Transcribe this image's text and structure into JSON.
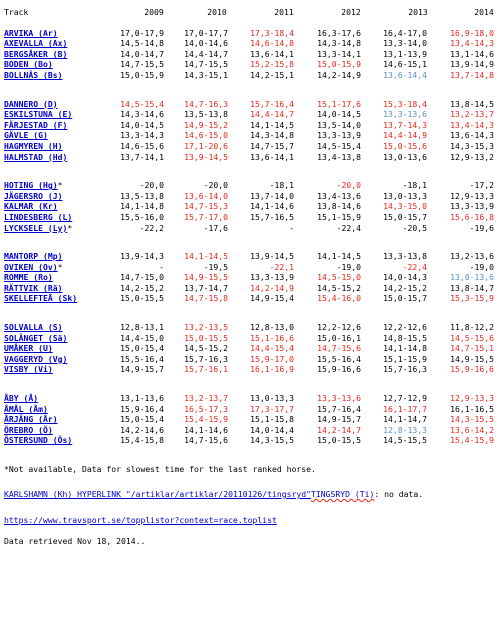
{
  "header": {
    "track_label": "Track",
    "years": [
      "2009",
      "2010",
      "2011",
      "2012",
      "2013",
      "2014"
    ]
  },
  "groups": [
    {
      "rows": [
        {
          "track": "ARVIKA (Ar)",
          "mark": "",
          "values": [
            {
              "t": "17,0-17,9",
              "c": "n"
            },
            {
              "t": "17,0-17,7",
              "c": "n"
            },
            {
              "t": "17,3-18,4",
              "c": "r"
            },
            {
              "t": "16,3-17,6",
              "c": "n"
            },
            {
              "t": "16,4-17,0",
              "c": "n"
            },
            {
              "t": "16,9-18,0",
              "c": "r"
            }
          ]
        },
        {
          "track": "AXEVALLA (Ax)",
          "mark": "",
          "values": [
            {
              "t": "14,5-14,8",
              "c": "n"
            },
            {
              "t": "14,0-14,6",
              "c": "n"
            },
            {
              "t": "14,6-14,8",
              "c": "r"
            },
            {
              "t": "14,3-14,8",
              "c": "n"
            },
            {
              "t": "13,3-14,0",
              "c": "n"
            },
            {
              "t": "13,4-14,3",
              "c": "r"
            }
          ]
        },
        {
          "track": "BERGSÅKER (B)",
          "mark": "",
          "values": [
            {
              "t": "14,0-14,7",
              "c": "n"
            },
            {
              "t": "14,4-14,7",
              "c": "n"
            },
            {
              "t": "13,6-14,1",
              "c": "n"
            },
            {
              "t": "13,3-14,1",
              "c": "n"
            },
            {
              "t": "13,1-13,9",
              "c": "n"
            },
            {
              "t": "13,1-14,6",
              "c": "n"
            }
          ]
        },
        {
          "track": "BODEN (Bo)",
          "mark": "",
          "values": [
            {
              "t": "14,7-15,5",
              "c": "n"
            },
            {
              "t": "14,7-15,5",
              "c": "n"
            },
            {
              "t": "15,2-15,8",
              "c": "r"
            },
            {
              "t": "15,0-15,9",
              "c": "r"
            },
            {
              "t": "14,6-15,1",
              "c": "n"
            },
            {
              "t": "13,9-14,9",
              "c": "n"
            }
          ]
        },
        {
          "track": "BOLLNÄS (Bs)",
          "mark": "",
          "values": [
            {
              "t": "15,0-15,9",
              "c": "n"
            },
            {
              "t": "14,3-15,1",
              "c": "n"
            },
            {
              "t": "14,2-15,1",
              "c": "n"
            },
            {
              "t": "14,2-14,9",
              "c": "n"
            },
            {
              "t": "13,6-14,4",
              "c": "b"
            },
            {
              "t": "13,7-14,8",
              "c": "r"
            }
          ]
        }
      ]
    },
    {
      "rows": [
        {
          "track": "DANNERO (D)",
          "mark": "",
          "values": [
            {
              "t": "14,5-15,4",
              "c": "r"
            },
            {
              "t": "14,7-16,3",
              "c": "r"
            },
            {
              "t": "15,7-16,4",
              "c": "r"
            },
            {
              "t": "15,1-17,6",
              "c": "r"
            },
            {
              "t": "15,3-18,4",
              "c": "r"
            },
            {
              "t": "13,8-14,5",
              "c": "n"
            }
          ]
        },
        {
          "track": "ESKILSTUNA (E)",
          "mark": "",
          "values": [
            {
              "t": "14,3-14,6",
              "c": "n"
            },
            {
              "t": "13,5-13,8",
              "c": "n"
            },
            {
              "t": "14,4-14,7",
              "c": "r"
            },
            {
              "t": "14,0-14,5",
              "c": "n"
            },
            {
              "t": "13,3-13,6",
              "c": "b"
            },
            {
              "t": "13,2-13,7",
              "c": "r"
            }
          ]
        },
        {
          "track": "FÄRJESTAD (F)",
          "mark": "",
          "values": [
            {
              "t": "14,0-14,5",
              "c": "n"
            },
            {
              "t": "14,9-15,2",
              "c": "r"
            },
            {
              "t": "14,1-14,5",
              "c": "n"
            },
            {
              "t": "13,5-14,0",
              "c": "n"
            },
            {
              "t": "13,7-14,3",
              "c": "r"
            },
            {
              "t": "13,4-14,3",
              "c": "r"
            }
          ]
        },
        {
          "track": "GÄVLE (G)",
          "mark": "",
          "values": [
            {
              "t": "13,3-14,3",
              "c": "n"
            },
            {
              "t": "14,6-15,0",
              "c": "r"
            },
            {
              "t": "14,3-14,8",
              "c": "n"
            },
            {
              "t": "13,3-13,9",
              "c": "n"
            },
            {
              "t": "14,4-14,9",
              "c": "r"
            },
            {
              "t": "13,6-14,3",
              "c": "n"
            }
          ]
        },
        {
          "track": "HAGMYREN (H)",
          "mark": "",
          "values": [
            {
              "t": "14,6-15,6",
              "c": "n"
            },
            {
              "t": "17,1-20,6",
              "c": "r"
            },
            {
              "t": "14,7-15,7",
              "c": "n"
            },
            {
              "t": "14,5-15,4",
              "c": "n"
            },
            {
              "t": "15,0-15,6",
              "c": "r"
            },
            {
              "t": "14,3-15,3",
              "c": "n"
            }
          ]
        },
        {
          "track": "HALMSTAD (Hd)",
          "mark": "",
          "values": [
            {
              "t": "13,7-14,1",
              "c": "n"
            },
            {
              "t": "13,9-14,5",
              "c": "r"
            },
            {
              "t": "13,6-14,1",
              "c": "n"
            },
            {
              "t": "13,4-13,8",
              "c": "n"
            },
            {
              "t": "13,0-13,6",
              "c": "n"
            },
            {
              "t": "12,9-13,2",
              "c": "n"
            }
          ]
        }
      ]
    },
    {
      "rows": [
        {
          "track": "HOTING (Hg)",
          "mark": "*",
          "values": [
            {
              "t": "-20,0",
              "c": "n"
            },
            {
              "t": "-20,0",
              "c": "n"
            },
            {
              "t": "-18,1",
              "c": "n"
            },
            {
              "t": "-20,0",
              "c": "r"
            },
            {
              "t": "-18,1",
              "c": "n"
            },
            {
              "t": "-17,2",
              "c": "n"
            }
          ]
        },
        {
          "track": "JÄGERSRO (J)",
          "mark": "",
          "values": [
            {
              "t": "13,5-13,8",
              "c": "n"
            },
            {
              "t": "13,6-14,0",
              "c": "r"
            },
            {
              "t": "13,7-14,0",
              "c": "n"
            },
            {
              "t": "13,4-13,6",
              "c": "n"
            },
            {
              "t": "13,0-13,3",
              "c": "n"
            },
            {
              "t": "12,9-13,3",
              "c": "n"
            }
          ]
        },
        {
          "track": "KALMAR (Kr)",
          "mark": "",
          "values": [
            {
              "t": "14,1-14,8",
              "c": "n"
            },
            {
              "t": "14,7-15,3",
              "c": "r"
            },
            {
              "t": "14,1-14,6",
              "c": "n"
            },
            {
              "t": "13,8-14,6",
              "c": "n"
            },
            {
              "t": "14,3-15,0",
              "c": "r"
            },
            {
              "t": "13,3-13,9",
              "c": "n"
            }
          ]
        },
        {
          "track": "LINDESBERG (L)",
          "mark": "",
          "values": [
            {
              "t": "15,5-16,0",
              "c": "n"
            },
            {
              "t": "15,7-17,0",
              "c": "r"
            },
            {
              "t": "15,7-16,5",
              "c": "n"
            },
            {
              "t": "15,1-15,9",
              "c": "n"
            },
            {
              "t": "15,0-15,7",
              "c": "n"
            },
            {
              "t": "15,6-16,8",
              "c": "r"
            }
          ]
        },
        {
          "track": "LYCKSELE (Ly)",
          "mark": "*",
          "values": [
            {
              "t": "-22,2",
              "c": "n"
            },
            {
              "t": "-17,6",
              "c": "n"
            },
            {
              "t": "-",
              "c": "n"
            },
            {
              "t": "-22,4",
              "c": "n"
            },
            {
              "t": "-20,5",
              "c": "n"
            },
            {
              "t": "-19,6",
              "c": "n"
            }
          ]
        }
      ]
    },
    {
      "rows": [
        {
          "track": "MANTORP (Mp)",
          "mark": "",
          "values": [
            {
              "t": "13,9-14,3",
              "c": "n"
            },
            {
              "t": "14,1-14,5",
              "c": "r"
            },
            {
              "t": "13,9-14,5",
              "c": "n"
            },
            {
              "t": "14,1-14,5",
              "c": "n"
            },
            {
              "t": "13,3-13,8",
              "c": "n"
            },
            {
              "t": "13,2-13,6",
              "c": "n"
            }
          ]
        },
        {
          "track": "OVIKEN (Ov)",
          "mark": "*",
          "values": [
            {
              "t": "-",
              "c": "n"
            },
            {
              "t": "-19,5",
              "c": "n"
            },
            {
              "t": "-22,1",
              "c": "r"
            },
            {
              "t": "-19,0",
              "c": "n"
            },
            {
              "t": "-22,4",
              "c": "r"
            },
            {
              "t": "-19,0",
              "c": "n"
            }
          ]
        },
        {
          "track": "ROMME (Ro)",
          "mark": "",
          "values": [
            {
              "t": "14,7-15,0",
              "c": "n"
            },
            {
              "t": "14,9-15,5",
              "c": "r"
            },
            {
              "t": "13,3-13,9",
              "c": "n"
            },
            {
              "t": "14,5-15,0",
              "c": "r"
            },
            {
              "t": "14,0-14,3",
              "c": "n"
            },
            {
              "t": "13,0-13,6",
              "c": "b"
            }
          ]
        },
        {
          "track": "RÄTTVIK (Rä)",
          "mark": "",
          "values": [
            {
              "t": "14,2-15,2",
              "c": "n"
            },
            {
              "t": "13,7-14,7",
              "c": "n"
            },
            {
              "t": "14,2-14,9",
              "c": "r"
            },
            {
              "t": "14,5-15,2",
              "c": "n"
            },
            {
              "t": "14,2-15,2",
              "c": "n"
            },
            {
              "t": "13,8-14,7",
              "c": "n"
            }
          ]
        },
        {
          "track": "SKELLEFTEÅ (Sk)",
          "mark": "",
          "values": [
            {
              "t": "15,0-15,5",
              "c": "n"
            },
            {
              "t": "14,7-15,8",
              "c": "r"
            },
            {
              "t": "14,9-15,4",
              "c": "n"
            },
            {
              "t": "15,4-16,0",
              "c": "r"
            },
            {
              "t": "15,0-15,7",
              "c": "n"
            },
            {
              "t": "15,3-15,9",
              "c": "r"
            }
          ]
        }
      ]
    },
    {
      "rows": [
        {
          "track": "SOLVALLA (S)",
          "mark": "",
          "values": [
            {
              "t": "12,8-13,1",
              "c": "n"
            },
            {
              "t": "13,2-13,5",
              "c": "r"
            },
            {
              "t": "12,8-13,0",
              "c": "n"
            },
            {
              "t": "12,2-12,6",
              "c": "n"
            },
            {
              "t": "12,2-12,6",
              "c": "n"
            },
            {
              "t": "11,8-12,2",
              "c": "n"
            }
          ]
        },
        {
          "track": "SOLÄNGET (Sä)",
          "mark": "",
          "values": [
            {
              "t": "14,4-15,0",
              "c": "n"
            },
            {
              "t": "15,0-15,5",
              "c": "r"
            },
            {
              "t": "15,1-16,6",
              "c": "r"
            },
            {
              "t": "15,0-16,1",
              "c": "n"
            },
            {
              "t": "14,8-15,5",
              "c": "n"
            },
            {
              "t": "14,5-15,6",
              "c": "r"
            }
          ]
        },
        {
          "track": "UMÅKER (U)",
          "mark": "",
          "values": [
            {
              "t": "15,0-15,4",
              "c": "n"
            },
            {
              "t": "14,5-15,2",
              "c": "n"
            },
            {
              "t": "14,4-15,4",
              "c": "r"
            },
            {
              "t": "14,7-15,6",
              "c": "r"
            },
            {
              "t": "14,1-14,8",
              "c": "n"
            },
            {
              "t": "14,7-15,1",
              "c": "r"
            }
          ]
        },
        {
          "track": "VAGGERYD (Vg)",
          "mark": "",
          "values": [
            {
              "t": "15,5-16,4",
              "c": "n"
            },
            {
              "t": "15,7-16,3",
              "c": "n"
            },
            {
              "t": "15,9-17,0",
              "c": "r"
            },
            {
              "t": "15,5-16,4",
              "c": "n"
            },
            {
              "t": "15,1-15,9",
              "c": "n"
            },
            {
              "t": "14,9-15,5",
              "c": "n"
            }
          ]
        },
        {
          "track": "VISBY (Vi)",
          "mark": "",
          "values": [
            {
              "t": "14,9-15,7",
              "c": "n"
            },
            {
              "t": "15,7-16,1",
              "c": "r"
            },
            {
              "t": "16,1-16,9",
              "c": "r"
            },
            {
              "t": "15,9-16,6",
              "c": "n"
            },
            {
              "t": "15,7-16,3",
              "c": "n"
            },
            {
              "t": "15,9-16,6",
              "c": "r"
            }
          ]
        }
      ]
    },
    {
      "rows": [
        {
          "track": "ÅBY (Å)",
          "mark": "",
          "values": [
            {
              "t": "13,1-13,6",
              "c": "n"
            },
            {
              "t": "13,2-13,7",
              "c": "r"
            },
            {
              "t": "13,0-13,3",
              "c": "n"
            },
            {
              "t": "13,3-13,6",
              "c": "r"
            },
            {
              "t": "12,7-12,9",
              "c": "n"
            },
            {
              "t": "12,9-13,3",
              "c": "r"
            }
          ]
        },
        {
          "track": "ÅMÅL (Åm)",
          "mark": "",
          "values": [
            {
              "t": "15,9-16,4",
              "c": "n"
            },
            {
              "t": "16,5-17,3",
              "c": "r"
            },
            {
              "t": "17,3-17,7",
              "c": "r"
            },
            {
              "t": "15,7-16,4",
              "c": "n"
            },
            {
              "t": "16,1-17,7",
              "c": "r"
            },
            {
              "t": "16,1-16,5",
              "c": "n"
            }
          ]
        },
        {
          "track": "ÅRJÄNG (År)",
          "mark": "",
          "values": [
            {
              "t": "15,0-15,4",
              "c": "n"
            },
            {
              "t": "15,4-15,9",
              "c": "r"
            },
            {
              "t": "15,1-15,8",
              "c": "n"
            },
            {
              "t": "14,9-15,7",
              "c": "n"
            },
            {
              "t": "14,1-14,7",
              "c": "n"
            },
            {
              "t": "14,3-15,5",
              "c": "r"
            }
          ]
        },
        {
          "track": "ÖREBRO (Ö)",
          "mark": "",
          "values": [
            {
              "t": "14,2-14,6",
              "c": "n"
            },
            {
              "t": "14,1-14,6",
              "c": "n"
            },
            {
              "t": "14,0-14,4",
              "c": "n"
            },
            {
              "t": "14,2-14,7",
              "c": "r"
            },
            {
              "t": "12,8-13,3",
              "c": "b"
            },
            {
              "t": "13,6-14,2",
              "c": "r"
            }
          ]
        },
        {
          "track": "ÖSTERSUND (Ös)",
          "mark": "",
          "values": [
            {
              "t": "15,4-15,8",
              "c": "n"
            },
            {
              "t": "14,7-15,6",
              "c": "n"
            },
            {
              "t": "14,3-15,5",
              "c": "n"
            },
            {
              "t": "15,0-15,5",
              "c": "n"
            },
            {
              "t": "14,5-15,5",
              "c": "n"
            },
            {
              "t": "15,4-15,9",
              "c": "r"
            }
          ]
        }
      ]
    }
  ],
  "footnote": "*Not available, Data for slowest time for the last ranked horse.",
  "missing_note": {
    "link1": "KARLSHAMN (Kh)",
    "middle": " HYPERLINK \"/artiklar/artiklar/20110126/tingsryd\"",
    "link2": "TINGSRYD (Ti)",
    "suffix": ": no data."
  },
  "source_link": "https://www.travsport.se/topplistor?context=race.toplist",
  "retrieved": "Data retrieved Nov 18, 2014.."
}
